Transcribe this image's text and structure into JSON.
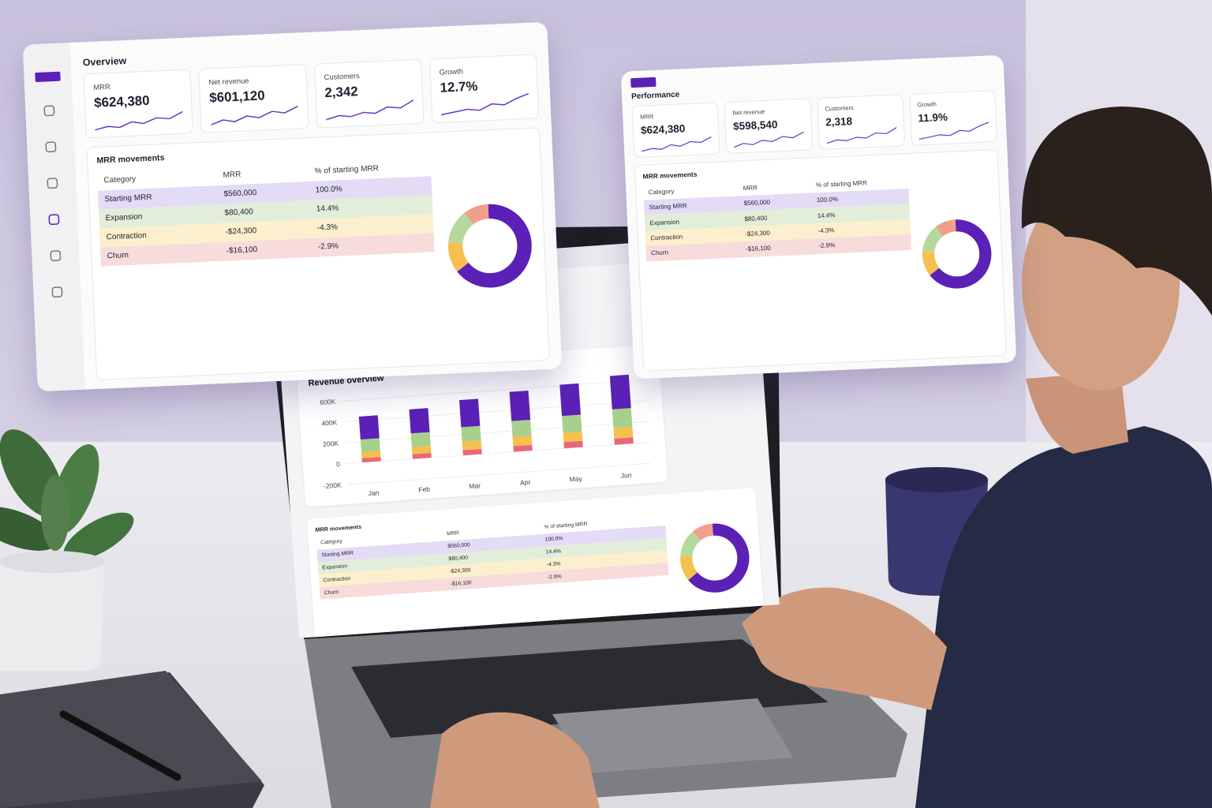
{
  "overview": {
    "title": "Overview",
    "kpis": [
      {
        "label": "MRR",
        "value": "$624,380"
      },
      {
        "label": "Net revenue",
        "value": "$601,120"
      },
      {
        "label": "Customers",
        "value": "2,342"
      },
      {
        "label": "Growth",
        "value": "12.7%"
      }
    ],
    "table": {
      "title": "MRR movements",
      "header": [
        "Category",
        "MRR",
        "% of starting MRR"
      ],
      "rows": [
        [
          "Starting MRR",
          "$560,000",
          "100.0%"
        ],
        [
          "Expansion",
          "$80,400",
          "14.4%"
        ],
        [
          "Contraction",
          "-$24,300",
          "-4.3%"
        ],
        [
          "Churn",
          "-$16,100",
          "-2.9%"
        ]
      ]
    }
  },
  "performance": {
    "title": "Performance",
    "kpis": [
      {
        "label": "MRR",
        "value": "$624,380"
      },
      {
        "label": "Net revenue",
        "value": "$598,540"
      },
      {
        "label": "Customers",
        "value": "2,318"
      },
      {
        "label": "Growth",
        "value": "11.9%"
      }
    ],
    "table": {
      "title": "MRR movements",
      "header": [
        "Category",
        "MRR",
        "% of starting MRR"
      ],
      "rows": [
        [
          "Starting MRR",
          "$560,000",
          "100.0%"
        ],
        [
          "Expansion",
          "$80,400",
          "14.4%"
        ],
        [
          "Contraction",
          "-$24,300",
          "-4.3%"
        ],
        [
          "Churn",
          "-$16,100",
          "-2.9%"
        ]
      ]
    }
  },
  "laptop": {
    "chart_data": {
      "type": "bar",
      "title": "Revenue overview",
      "categories": [
        "Jan",
        "Feb",
        "Mar",
        "Apr",
        "May",
        "Jun"
      ],
      "series": [
        {
          "color": "#e8677a",
          "values": [
            40000,
            45000,
            50000,
            55000,
            60000,
            60000
          ]
        },
        {
          "color": "#f6c04e",
          "values": [
            60000,
            70000,
            80000,
            90000,
            90000,
            100000
          ]
        },
        {
          "color": "#a8d08d",
          "values": [
            120000,
            130000,
            140000,
            150000,
            160000,
            180000
          ]
        },
        {
          "color": "#5b21b6",
          "values": [
            220000,
            230000,
            260000,
            280000,
            300000,
            320000
          ]
        }
      ],
      "ylim": [
        -200000,
        600000
      ],
      "yticks": [
        {
          "value": -200000,
          "label": "-200K"
        },
        0,
        {
          "value": 200000,
          "label": "200K"
        },
        {
          "value": 400000,
          "label": "400K"
        },
        {
          "value": 600000,
          "label": "600K"
        }
      ]
    },
    "table": {
      "title": "MRR movements",
      "header": [
        "Category",
        "MRR",
        "% of starting MRR"
      ],
      "rows": [
        [
          "Starting MRR",
          "$560,000",
          "100.0%"
        ],
        [
          "Expansion",
          "$80,400",
          "14.4%"
        ],
        [
          "Contraction",
          "-$24,300",
          "-4.3%"
        ],
        [
          "Churn",
          "-$16,100",
          "-2.9%"
        ]
      ]
    }
  },
  "donut": {
    "type": "pie",
    "values": [
      65,
      12,
      13,
      10
    ],
    "colors": [
      "#5b21b6",
      "#f6c04e",
      "#b5d99c",
      "#f0a08a"
    ]
  }
}
